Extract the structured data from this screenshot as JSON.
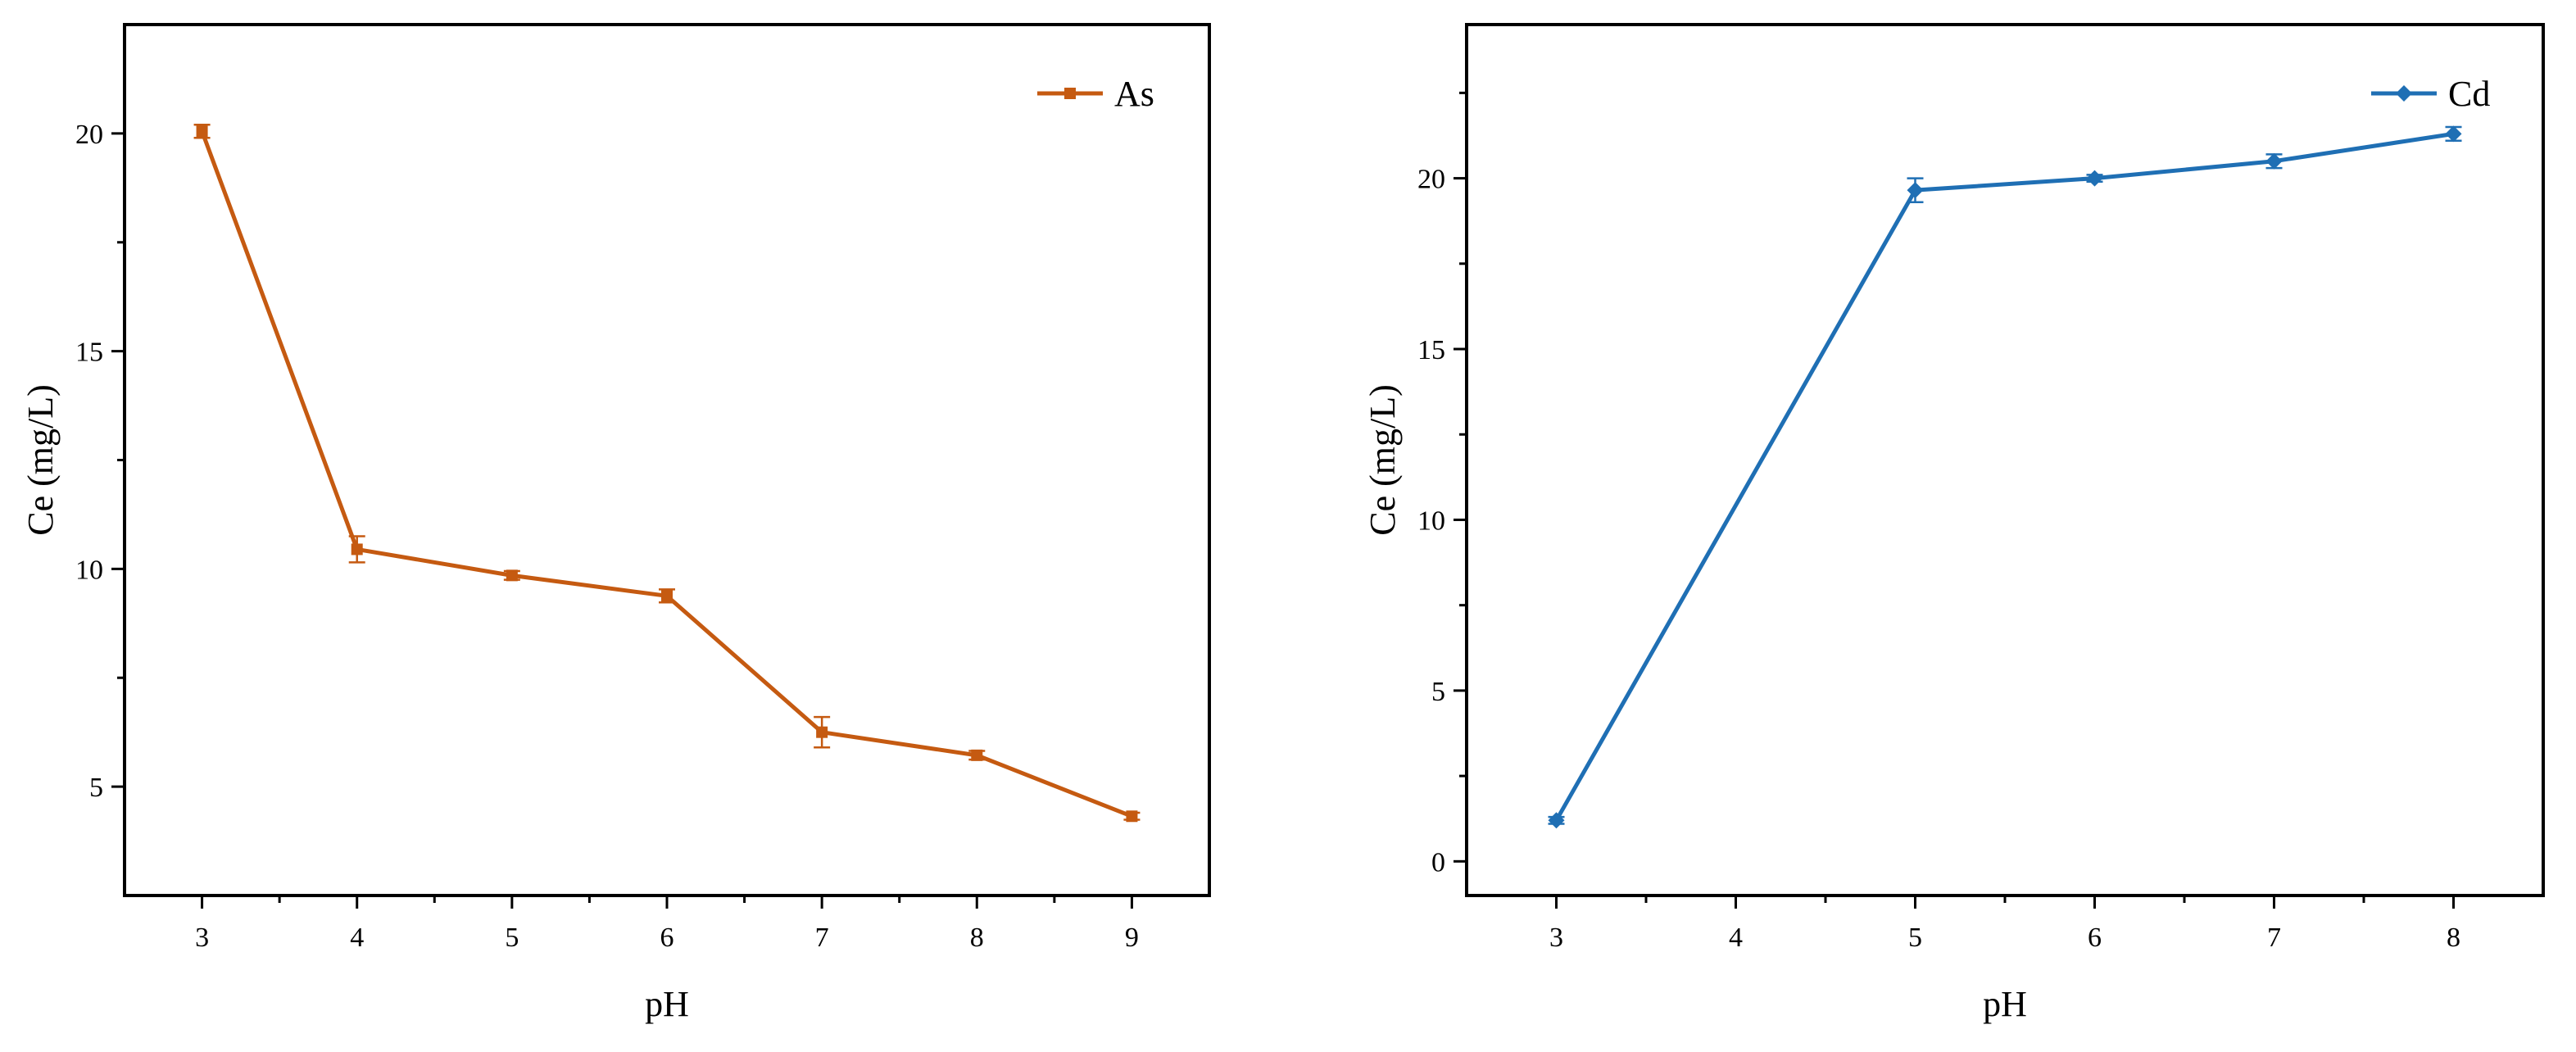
{
  "chart_data": [
    {
      "type": "line",
      "title": "",
      "xlabel": "pH",
      "ylabel": "Ce (mg/L)",
      "xlim": [
        2.5,
        9.5
      ],
      "ylim": [
        2.5,
        22.5
      ],
      "xticks": [
        3,
        4,
        5,
        6,
        7,
        8,
        9
      ],
      "yticks": [
        5,
        10,
        15,
        20
      ],
      "legend_position": "top-right",
      "grid": false,
      "series": [
        {
          "name": "As",
          "color": "#C55A11",
          "marker": "square",
          "x": [
            3,
            4,
            5,
            6,
            7,
            8,
            9
          ],
          "y": [
            20.05,
            10.45,
            9.85,
            9.38,
            6.25,
            5.72,
            4.32
          ],
          "error": [
            0.15,
            0.3,
            0.1,
            0.15,
            0.35,
            0.1,
            0.08
          ]
        }
      ]
    },
    {
      "type": "line",
      "title": "",
      "xlabel": "pH",
      "ylabel": "Ce (mg/L)",
      "xlim": [
        2.5,
        8.5
      ],
      "ylim": [
        -1,
        24.5
      ],
      "xticks": [
        3,
        4,
        5,
        6,
        7,
        8
      ],
      "yticks": [
        0,
        5,
        10,
        15,
        20
      ],
      "legend_position": "top-right",
      "grid": false,
      "series": [
        {
          "name": "Cd",
          "color": "#1F6FB4",
          "marker": "diamond",
          "x": [
            3,
            5,
            6,
            7,
            8
          ],
          "y": [
            1.2,
            19.65,
            20.0,
            20.5,
            21.3
          ],
          "error": [
            0.1,
            0.35,
            0.1,
            0.2,
            0.2
          ]
        }
      ]
    }
  ]
}
